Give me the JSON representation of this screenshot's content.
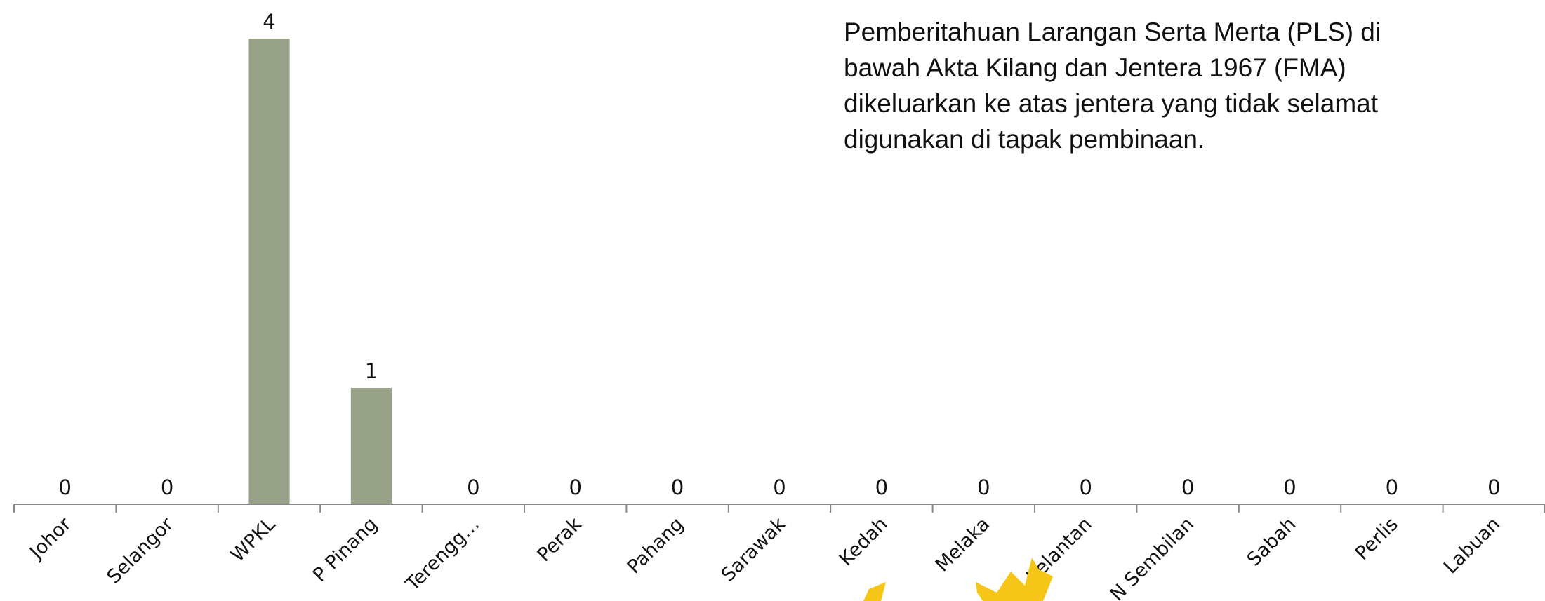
{
  "chart_data": {
    "type": "bar",
    "annotation": [
      "Pemberitahuan Larangan Serta Merta (PLS) di",
      "bawah Akta Kilang dan Jentera 1967 (FMA)",
      "dikeluarkan ke atas jentera yang tidak selamat",
      "digunakan di tapak pembinaan."
    ],
    "categories": [
      "Johor",
      "Selangor",
      "WPKL",
      "P Pinang",
      "Terengg…",
      "Perak",
      "Pahang",
      "Sarawak",
      "Kedah",
      "Melaka",
      "Kelantan",
      "N Sembilan",
      "Sabah",
      "Perlis",
      "Labuan"
    ],
    "values": [
      0,
      0,
      4,
      1,
      0,
      0,
      0,
      0,
      0,
      0,
      0,
      0,
      0,
      0,
      0
    ],
    "color": "#97a288",
    "ylim": [
      0,
      4
    ]
  }
}
